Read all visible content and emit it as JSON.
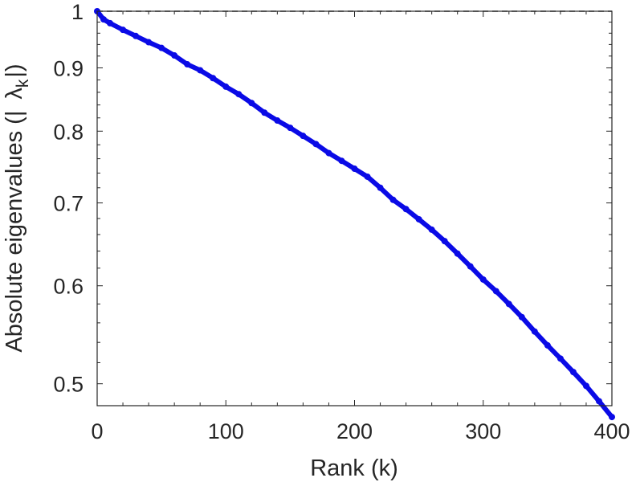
{
  "chart_data": {
    "type": "line",
    "title": "",
    "xlabel": "Rank (k)",
    "ylabel": {
      "prefix": "Absolute eigenvalues (|",
      "symbol": "λ",
      "subscript": "k",
      "suffix": "|)"
    },
    "xlim": [
      0,
      400
    ],
    "ylim": [
      0.48,
      1.0
    ],
    "yscale": "log",
    "xticks": [
      0,
      100,
      200,
      300,
      400
    ],
    "xtick_labels": [
      "0",
      "100",
      "200",
      "300",
      "400"
    ],
    "yticks": [
      0.5,
      0.6,
      0.7,
      0.8,
      0.9,
      1.0
    ],
    "ytick_labels": [
      "0.5",
      "0.6",
      "0.7",
      "0.8",
      "0.9",
      "1"
    ],
    "grid": false,
    "reference_line": {
      "y": 1.0,
      "style": "dashed"
    },
    "series": [
      {
        "color": "#0a0ae6",
        "marker": "circle",
        "x": [
          0,
          5,
          10,
          20,
          30,
          40,
          50,
          60,
          70,
          80,
          90,
          100,
          110,
          120,
          130,
          140,
          150,
          160,
          170,
          180,
          190,
          200,
          210,
          220,
          230,
          240,
          250,
          260,
          270,
          280,
          290,
          300,
          310,
          320,
          330,
          340,
          350,
          360,
          370,
          380,
          390,
          400
        ],
        "y": [
          1.0,
          0.985,
          0.978,
          0.966,
          0.955,
          0.944,
          0.934,
          0.921,
          0.906,
          0.896,
          0.883,
          0.869,
          0.857,
          0.843,
          0.828,
          0.816,
          0.805,
          0.793,
          0.781,
          0.768,
          0.757,
          0.746,
          0.735,
          0.72,
          0.704,
          0.692,
          0.679,
          0.666,
          0.652,
          0.637,
          0.622,
          0.607,
          0.594,
          0.58,
          0.566,
          0.551,
          0.537,
          0.524,
          0.511,
          0.498,
          0.484,
          0.47
        ]
      }
    ]
  }
}
